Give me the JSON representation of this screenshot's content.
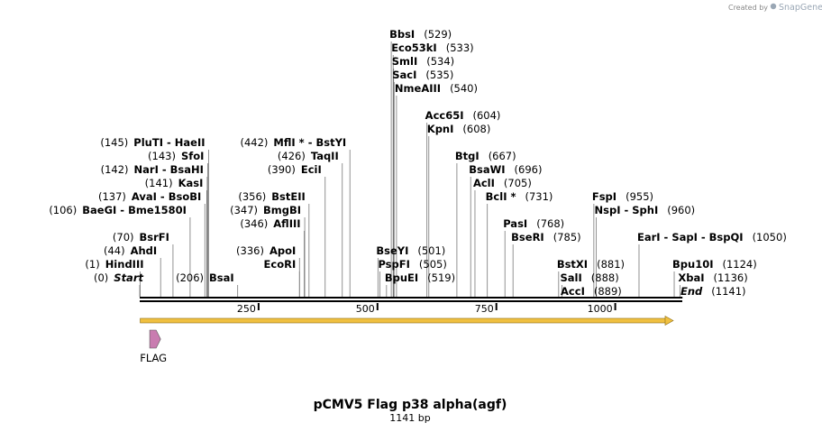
{
  "credit": {
    "prefix": "Created by",
    "brand": "SnapGene"
  },
  "title": "pCMV5 Flag p38 alpha(agf)",
  "subtitle": "1141 bp",
  "sequence_length": 1141,
  "ruler_ticks": [
    {
      "pos": 250,
      "label": "250"
    },
    {
      "pos": 500,
      "label": "500"
    },
    {
      "pos": 750,
      "label": "750"
    },
    {
      "pos": 1000,
      "label": "1000"
    }
  ],
  "features": [
    {
      "label": "FLAG",
      "start": 21,
      "end": 44,
      "color": "#c97cb0"
    }
  ],
  "orf": {
    "start": 1,
    "end": 1122,
    "color": "#f0c040"
  },
  "sites": [
    {
      "row": 18,
      "pos": 0,
      "num": "(0)",
      "name": "Start",
      "italic": true,
      "numLeft": true
    },
    {
      "row": 17,
      "pos": 1,
      "num": "(1)",
      "name": "HindIII",
      "numLeft": true
    },
    {
      "row": 16,
      "pos": 44,
      "num": "(44)",
      "name": "AhdI",
      "numLeft": true
    },
    {
      "row": 15,
      "pos": 70,
      "num": "(70)",
      "name": "BsrFI",
      "numLeft": true
    },
    {
      "row": 13,
      "pos": 106,
      "num": "(106)",
      "name": "BaeGI  - Bme1580I",
      "numLeft": true
    },
    {
      "row": 12,
      "pos": 137,
      "num": "(137)",
      "name": "AvaI  - BsoBI",
      "numLeft": true
    },
    {
      "row": 11,
      "pos": 141,
      "num": "(141)",
      "name": "KasI",
      "numLeft": true
    },
    {
      "row": 10,
      "pos": 142,
      "num": "(142)",
      "name": "NarI  - BsaHI",
      "numLeft": true
    },
    {
      "row": 9,
      "pos": 143,
      "num": "(143)",
      "name": "SfoI",
      "numLeft": true
    },
    {
      "row": 8,
      "pos": 145,
      "num": "(145)",
      "name": "PluTI  - HaeII",
      "numLeft": true
    },
    {
      "row": 18,
      "pos": 206,
      "num": "(206)",
      "name": "BsaI",
      "numLeft": true
    },
    {
      "row": 16,
      "pos": 336,
      "num": "(336)",
      "name": "ApoI",
      "numLeft": true
    },
    {
      "row": 17,
      "pos": 336,
      "num": "",
      "name": "EcoRI",
      "numLeft": true
    },
    {
      "row": 14,
      "pos": 346,
      "num": "(346)",
      "name": "AflIII",
      "numLeft": true
    },
    {
      "row": 13,
      "pos": 347,
      "num": "(347)",
      "name": "BmgBI",
      "numLeft": true
    },
    {
      "row": 12,
      "pos": 356,
      "num": "(356)",
      "name": "BstEII",
      "numLeft": true
    },
    {
      "row": 10,
      "pos": 390,
      "num": "(390)",
      "name": "EciI",
      "numLeft": true
    },
    {
      "row": 9,
      "pos": 426,
      "num": "(426)",
      "name": "TaqII",
      "numLeft": true
    },
    {
      "row": 8,
      "pos": 442,
      "num": "(442)",
      "name": "MflI * - BstYI",
      "numLeft": true
    },
    {
      "row": 0,
      "pos": 529,
      "num": "(529)",
      "name": "BbsI"
    },
    {
      "row": 1,
      "pos": 533,
      "num": "(533)",
      "name": "Eco53kI"
    },
    {
      "row": 2,
      "pos": 534,
      "num": "(534)",
      "name": "SmlI"
    },
    {
      "row": 3,
      "pos": 535,
      "num": "(535)",
      "name": "SacI"
    },
    {
      "row": 4,
      "pos": 540,
      "num": "(540)",
      "name": "NmeAIII"
    },
    {
      "row": 16,
      "pos": 501,
      "num": "(501)",
      "name": "BseYI"
    },
    {
      "row": 17,
      "pos": 505,
      "num": "(505)",
      "name": "PspFI"
    },
    {
      "row": 18,
      "pos": 519,
      "num": "(519)",
      "name": "BpuEI"
    },
    {
      "row": 6,
      "pos": 604,
      "num": "(604)",
      "name": "Acc65I"
    },
    {
      "row": 7,
      "pos": 608,
      "num": "(608)",
      "name": "KpnI"
    },
    {
      "row": 9,
      "pos": 667,
      "num": "(667)",
      "name": "BtgI"
    },
    {
      "row": 10,
      "pos": 696,
      "num": "(696)",
      "name": "BsaWI"
    },
    {
      "row": 11,
      "pos": 705,
      "num": "(705)",
      "name": "AclI"
    },
    {
      "row": 12,
      "pos": 731,
      "num": "(731)",
      "name": "BclI *"
    },
    {
      "row": 14,
      "pos": 768,
      "num": "(768)",
      "name": "PasI"
    },
    {
      "row": 15,
      "pos": 785,
      "num": "(785)",
      "name": "BseRI"
    },
    {
      "row": 17,
      "pos": 881,
      "num": "(881)",
      "name": "BstXI"
    },
    {
      "row": 18,
      "pos": 888,
      "num": "(888)",
      "name": "SalI"
    },
    {
      "row": 19,
      "pos": 889,
      "num": "(889)",
      "name": "AccI"
    },
    {
      "row": 12,
      "pos": 955,
      "num": "(955)",
      "name": "FspI"
    },
    {
      "row": 13,
      "pos": 960,
      "num": "(960)",
      "name": "NspI  - SphI"
    },
    {
      "row": 15,
      "pos": 1050,
      "num": "(1050)",
      "name": "EarI  - SapI  - BspQI"
    },
    {
      "row": 17,
      "pos": 1124,
      "num": "(1124)",
      "name": "Bpu10I"
    },
    {
      "row": 18,
      "pos": 1136,
      "num": "(1136)",
      "name": "XbaI"
    },
    {
      "row": 19,
      "pos": 1141,
      "num": "(1141)",
      "name": "End",
      "italic": true
    }
  ]
}
